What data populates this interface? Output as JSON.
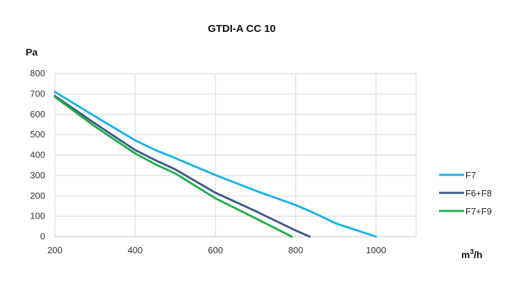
{
  "chart_data": {
    "type": "line",
    "title": "GTDI-A CC 10",
    "ylabel": "Pa",
    "xlabel_base": "m",
    "xlabel_sup": "3",
    "xlabel_rest": "/h",
    "xlim": [
      200,
      1100
    ],
    "ylim": [
      0,
      800
    ],
    "x_ticks": [
      200,
      400,
      600,
      800,
      1000
    ],
    "y_ticks": [
      0,
      100,
      200,
      300,
      400,
      500,
      600,
      700,
      800
    ],
    "grid": "vertical and horizontal",
    "legend_position": "right",
    "series": [
      {
        "name": "F7",
        "color": "#1ab0e8",
        "points": [
          [
            200,
            710
          ],
          [
            300,
            590
          ],
          [
            400,
            472
          ],
          [
            450,
            425
          ],
          [
            500,
            385
          ],
          [
            600,
            302
          ],
          [
            700,
            225
          ],
          [
            800,
            155
          ],
          [
            850,
            112
          ],
          [
            900,
            65
          ],
          [
            1000,
            0
          ]
        ]
      },
      {
        "name": "F6+F8",
        "color": "#3d5a8a",
        "points": [
          [
            200,
            690
          ],
          [
            300,
            555
          ],
          [
            400,
            425
          ],
          [
            450,
            375
          ],
          [
            500,
            330
          ],
          [
            600,
            215
          ],
          [
            700,
            125
          ],
          [
            800,
            30
          ],
          [
            835,
            0
          ]
        ]
      },
      {
        "name": "F7+F9",
        "color": "#1faf4e",
        "points": [
          [
            200,
            685
          ],
          [
            300,
            540
          ],
          [
            400,
            408
          ],
          [
            450,
            355
          ],
          [
            500,
            310
          ],
          [
            600,
            188
          ],
          [
            700,
            90
          ],
          [
            790,
            0
          ]
        ]
      }
    ]
  }
}
